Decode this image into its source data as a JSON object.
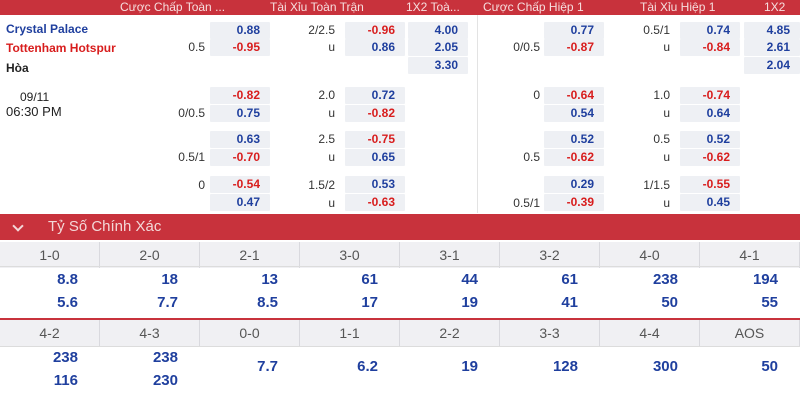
{
  "header": {
    "col_ah_full": "Cược Chấp Toàn ...",
    "col_ou_full": "Tài Xỉu Toàn Trận",
    "col_1x2_full": "1X2 Toà...",
    "col_ah_half": "Cược Chấp Hiệp 1",
    "col_ou_half": "Tài Xỉu Hiệp 1",
    "col_1x2_half": "1X2"
  },
  "match": {
    "home": "Crystal Palace",
    "away": "Tottenham Hotspur",
    "draw": "Hòa",
    "date": "09/11",
    "time": "06:30 PM"
  },
  "odds_rows": [
    {
      "ah_full": {
        "line_home": "",
        "line_away": "0.5",
        "home": "0.88",
        "away": "-0.95"
      },
      "ou_full": {
        "line": "2/2.5",
        "u": "u",
        "over": "-0.96",
        "under": "0.86"
      },
      "x12_full": {
        "home": "4.00",
        "away": "2.05",
        "draw": "3.30"
      },
      "ah_half": {
        "line_home": "",
        "line_away": "0/0.5",
        "home": "0.77",
        "away": "-0.87"
      },
      "ou_half": {
        "line": "0.5/1",
        "u": "u",
        "over": "0.74",
        "under": "-0.84"
      },
      "x12_half": {
        "home": "4.85",
        "away": "2.61",
        "draw": "2.04"
      }
    },
    {
      "ah_full": {
        "line_home": "",
        "line_away": "0/0.5",
        "home": "-0.82",
        "away": "0.75"
      },
      "ou_full": {
        "line": "2.0",
        "u": "u",
        "over": "0.72",
        "under": "-0.82"
      },
      "ah_half": {
        "line_home": "0",
        "line_away": "",
        "home": "-0.64",
        "away": "0.54"
      },
      "ou_half": {
        "line": "1.0",
        "u": "u",
        "over": "-0.74",
        "under": "0.64"
      }
    },
    {
      "ah_full": {
        "line_home": "",
        "line_away": "0.5/1",
        "home": "0.63",
        "away": "-0.70"
      },
      "ou_full": {
        "line": "2.5",
        "u": "u",
        "over": "-0.75",
        "under": "0.65"
      },
      "ah_half": {
        "line_home": "",
        "line_away": "0.5",
        "home": "0.52",
        "away": "-0.62"
      },
      "ou_half": {
        "line": "0.5",
        "u": "u",
        "over": "0.52",
        "under": "-0.62"
      }
    },
    {
      "ah_full": {
        "line_home": "0",
        "line_away": "",
        "home": "-0.54",
        "away": "0.47"
      },
      "ou_full": {
        "line": "1.5/2",
        "u": "u",
        "over": "0.53",
        "under": "-0.63"
      },
      "ah_half": {
        "line_home": "",
        "line_away": "0.5/1",
        "home": "0.29",
        "away": "-0.39"
      },
      "ou_half": {
        "line": "1/1.5",
        "u": "u",
        "over": "-0.55",
        "under": "0.45"
      }
    }
  ],
  "exact_score": {
    "title": "Tỷ Số Chính Xác",
    "row1": [
      {
        "score": "1-0",
        "home": "8.8",
        "away": "5.6"
      },
      {
        "score": "2-0",
        "home": "18",
        "away": "7.7"
      },
      {
        "score": "2-1",
        "home": "13",
        "away": "8.5"
      },
      {
        "score": "3-0",
        "home": "61",
        "away": "17"
      },
      {
        "score": "3-1",
        "home": "44",
        "away": "19"
      },
      {
        "score": "3-2",
        "home": "61",
        "away": "41"
      },
      {
        "score": "4-0",
        "home": "238",
        "away": "50"
      },
      {
        "score": "4-1",
        "home": "194",
        "away": "55"
      }
    ],
    "row2": [
      {
        "score": "4-2",
        "home": "238",
        "away": "116"
      },
      {
        "score": "4-3",
        "home": "238",
        "away": "230"
      },
      {
        "score": "0-0",
        "single": "7.7"
      },
      {
        "score": "1-1",
        "single": "6.2"
      },
      {
        "score": "2-2",
        "single": "19"
      },
      {
        "score": "3-3",
        "single": "128"
      },
      {
        "score": "4-4",
        "single": "300"
      },
      {
        "score": "AOS",
        "single": "50"
      }
    ]
  },
  "colors": {
    "brand_red": "#c8323c",
    "odd_blue": "#1f3f9e",
    "odd_red": "#d81d1d"
  }
}
